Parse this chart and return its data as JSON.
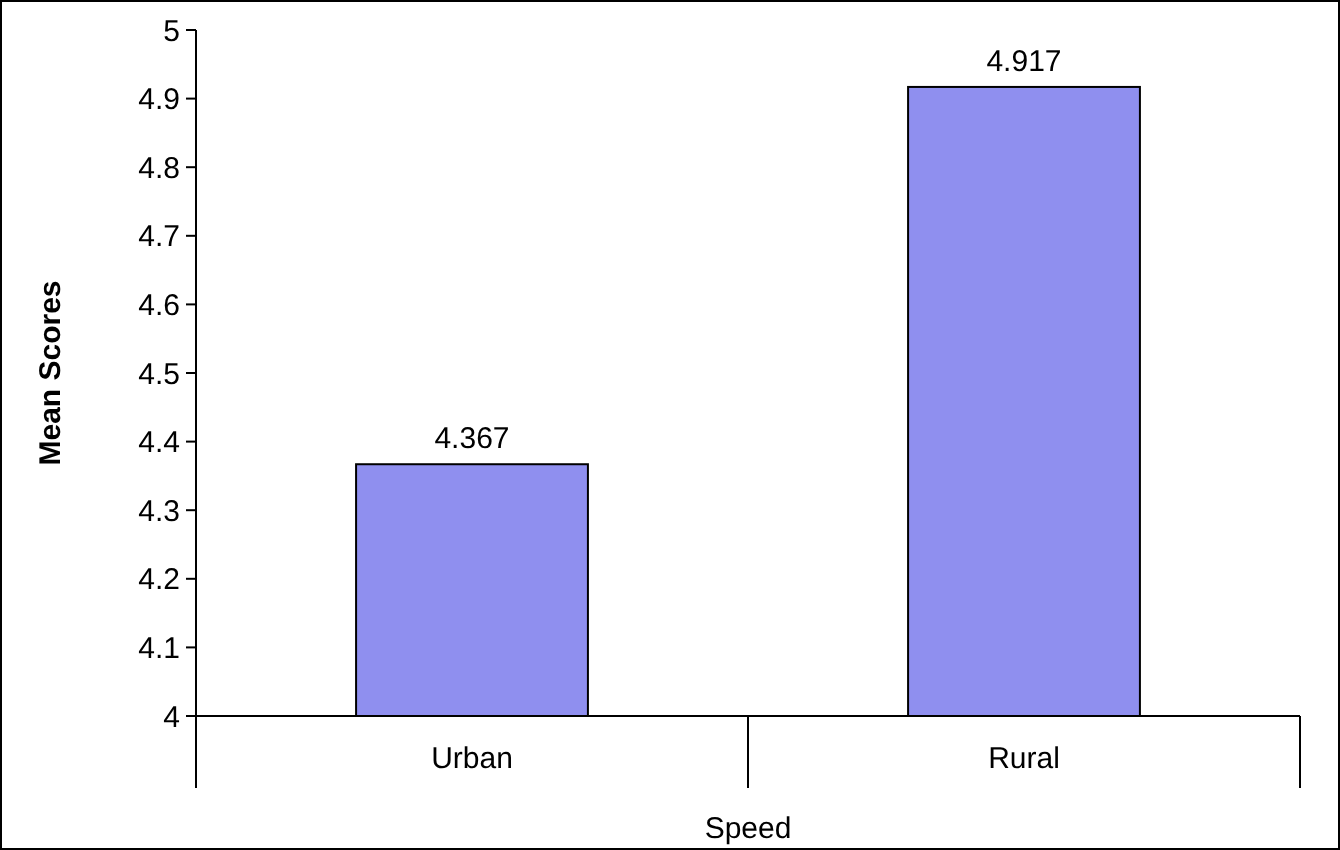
{
  "chart_data": {
    "type": "bar",
    "xlabel": "Speed",
    "ylabel": "Mean Scores",
    "categories": [
      "Urban",
      "Rural"
    ],
    "values": [
      4.367,
      4.917
    ],
    "color": "#8f8fef",
    "ylim": [
      4,
      5
    ],
    "yticks": [
      4,
      4.1,
      4.2,
      4.3,
      4.4,
      4.5,
      4.6,
      4.7,
      4.8,
      4.9,
      5
    ],
    "data_labels": true
  }
}
